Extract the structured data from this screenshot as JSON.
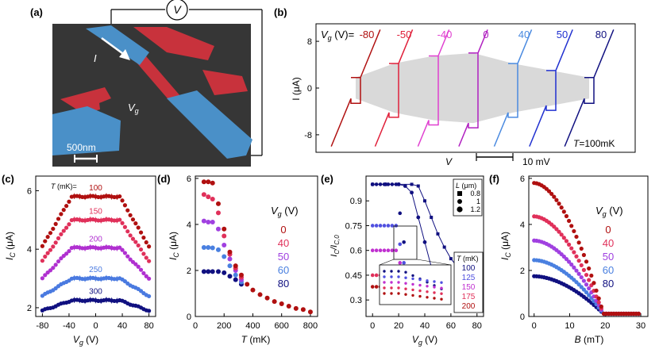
{
  "panel_labels": {
    "a": "(a)",
    "b": "(b)",
    "c": "(c)",
    "d": "(d)",
    "e": "(e)",
    "f": "(f)"
  },
  "panel_a": {
    "meter_label": "V",
    "current_label": "I",
    "gate_label": "V",
    "gate_sub": "g",
    "scale_bar": "500nm",
    "colors": {
      "electrode": "#4a90c8",
      "gate": "#c8323c",
      "wire": "#c8323c",
      "background": "#2a2a2a"
    }
  },
  "chart_data": [
    {
      "id": "b",
      "type": "line",
      "ylabel": "I (μA)",
      "xlabel": "V",
      "scale_bar_label": "10 mV",
      "legend_title": "V_g (V)=",
      "legend_title_main": "V",
      "legend_title_sub": "g",
      "legend_title_tail": " (V)=",
      "temperature_label": "T=100mK",
      "temperature_main": "T",
      "temperature_tail": "=100mK",
      "y_ticks": [
        8,
        0,
        -8
      ],
      "ylim": [
        -11,
        11
      ],
      "shaded_band": true,
      "series": [
        {
          "name": "-80",
          "color": "#b01010",
          "Ic": 1.8
        },
        {
          "name": "-50",
          "color": "#e0203a",
          "Ic": 4.2
        },
        {
          "name": "-40",
          "color": "#e040d0",
          "Ic": 5.5
        },
        {
          "name": "0",
          "color": "#b020c0",
          "Ic": 6.0
        },
        {
          "name": "40",
          "color": "#4a8ae0",
          "Ic": 4.2
        },
        {
          "name": "50",
          "color": "#2030d0",
          "Ic": 3.0
        },
        {
          "name": "80",
          "color": "#101080",
          "Ic": 1.8
        }
      ]
    },
    {
      "id": "c",
      "type": "scatter",
      "xlabel": "V_g (V)",
      "xlabel_main": "V",
      "xlabel_sub": "g",
      "xlabel_tail": " (V)",
      "ylabel_main": "I",
      "ylabel_sub": "C",
      "ylabel_tail": " (μA)",
      "xlim": [
        -90,
        90
      ],
      "ylim": [
        1.7,
        6.5
      ],
      "x_ticks": [
        -80,
        -40,
        0,
        40,
        80
      ],
      "y_ticks": [
        2,
        4,
        6
      ],
      "annotation_prefix": "T (mK)= ",
      "annotation_main": "T",
      "annotation_tail": " (mK)= ",
      "series": [
        {
          "name": "100",
          "color": "#b01010",
          "plateau": 5.8,
          "low": 4.1
        },
        {
          "name": "150",
          "color": "#e0305a",
          "plateau": 5.0,
          "low": 3.6
        },
        {
          "name": "200",
          "color": "#b030d0",
          "plateau": 4.05,
          "low": 3.0
        },
        {
          "name": "250",
          "color": "#4a7ae0",
          "plateau": 3.0,
          "low": 2.4
        },
        {
          "name": "300",
          "color": "#101080",
          "plateau": 2.25,
          "low": 1.9
        }
      ]
    },
    {
      "id": "d",
      "type": "scatter",
      "xlabel_main": "T",
      "xlabel_tail": " (mK)",
      "ylabel_main": "I",
      "ylabel_sub": "C",
      "ylabel_tail": " (μA)",
      "xlim": [
        0,
        850
      ],
      "ylim": [
        0,
        6.1
      ],
      "x_ticks": [
        0,
        200,
        400,
        600,
        800
      ],
      "y_ticks": [
        0,
        2,
        4,
        6
      ],
      "legend_title_main": "V",
      "legend_title_sub": "g",
      "legend_title_tail": " (V)",
      "series": [
        {
          "name": "0",
          "color": "#b01010",
          "points": [
            [
              60,
              5.85
            ],
            [
              90,
              5.85
            ],
            [
              120,
              5.8
            ],
            [
              160,
              4.9
            ],
            [
              200,
              3.8
            ],
            [
              240,
              2.8
            ],
            [
              280,
              2.2
            ],
            [
              320,
              1.8
            ],
            [
              360,
              1.4
            ],
            [
              400,
              1.15
            ],
            [
              450,
              0.95
            ],
            [
              500,
              0.8
            ],
            [
              550,
              0.65
            ],
            [
              600,
              0.55
            ],
            [
              650,
              0.45
            ],
            [
              700,
              0.35
            ],
            [
              750,
              0.3
            ],
            [
              800,
              0.2
            ]
          ]
        },
        {
          "name": "40",
          "color": "#e0305a",
          "points": [
            [
              60,
              5.3
            ],
            [
              90,
              5.2
            ],
            [
              120,
              5.1
            ],
            [
              160,
              4.5
            ],
            [
              200,
              3.5
            ],
            [
              240,
              2.7
            ],
            [
              280,
              2.1
            ],
            [
              320,
              1.7
            ]
          ]
        },
        {
          "name": "50",
          "color": "#a040e0",
          "points": [
            [
              60,
              4.15
            ],
            [
              90,
              4.1
            ],
            [
              120,
              4.1
            ],
            [
              160,
              3.8
            ],
            [
              200,
              3.1
            ],
            [
              240,
              2.5
            ],
            [
              280,
              2.0
            ],
            [
              320,
              1.6
            ]
          ]
        },
        {
          "name": "60",
          "color": "#4a80e0",
          "points": [
            [
              60,
              3.0
            ],
            [
              90,
              3.0
            ],
            [
              120,
              2.98
            ],
            [
              160,
              2.9
            ],
            [
              200,
              2.6
            ],
            [
              240,
              2.2
            ],
            [
              280,
              1.8
            ],
            [
              320,
              1.5
            ]
          ]
        },
        {
          "name": "80",
          "color": "#101080",
          "points": [
            [
              60,
              1.95
            ],
            [
              90,
              1.95
            ],
            [
              120,
              1.95
            ],
            [
              160,
              1.95
            ],
            [
              200,
              1.9
            ],
            [
              240,
              1.75
            ],
            [
              280,
              1.6
            ],
            [
              320,
              1.4
            ]
          ]
        }
      ]
    },
    {
      "id": "e",
      "type": "scatter",
      "xlabel_main": "V",
      "xlabel_sub": "g",
      "xlabel_tail": " (V)",
      "ylabel": "I_C/I_C,0",
      "xlim": [
        -5,
        85
      ],
      "ylim": [
        0.2,
        1.05
      ],
      "x_ticks": [
        0,
        20,
        40,
        60,
        80
      ],
      "y_ticks": [
        0.3,
        0.45,
        0.6,
        0.75,
        0.9
      ],
      "y_tick_labels": [
        "0.3",
        "0.45",
        "0.6",
        "0.75",
        "0.9"
      ],
      "legend_L_title": "L (μm)",
      "legend_L_main": "L",
      "legend_L_tail": " (μm)",
      "legend_L": [
        "0.8",
        "1",
        "1.2"
      ],
      "legend_T_title": "T (mK)",
      "legend_T_main": "T",
      "legend_T_tail": " (mK)",
      "legend_T": [
        {
          "label": "100",
          "color": "#101080"
        },
        {
          "label": "125",
          "color": "#5050e0"
        },
        {
          "label": "150",
          "color": "#c030d0"
        },
        {
          "label": "175",
          "color": "#e0305a"
        },
        {
          "label": "200",
          "color": "#b01010"
        }
      ],
      "series": [
        {
          "name": "100",
          "color": "#101080",
          "flat": 1.0,
          "end": 30
        },
        {
          "name": "125",
          "color": "#5050e0",
          "flat": 0.75,
          "end": 30
        },
        {
          "name": "150",
          "color": "#c030d0",
          "flat": 0.6,
          "end": 30
        },
        {
          "name": "175",
          "color": "#e0305a",
          "flat": 0.45,
          "end": 30
        },
        {
          "name": "200",
          "color": "#b01010",
          "flat": 0.38,
          "end": 30
        }
      ],
      "long_series": [
        {
          "name": "L1.0",
          "color": "#101080",
          "points": [
            [
              0,
              1.0
            ],
            [
              10,
              1.0
            ],
            [
              20,
              1.0
            ],
            [
              25,
              0.99
            ],
            [
              30,
              0.95
            ],
            [
              35,
              0.8
            ],
            [
              40,
              0.65
            ],
            [
              45,
              0.5
            ],
            [
              50,
              0.4
            ]
          ]
        },
        {
          "name": "L1.2",
          "color": "#101080",
          "points": [
            [
              0,
              1.0
            ],
            [
              10,
              1.0
            ],
            [
              20,
              1.0
            ],
            [
              30,
              1.0
            ],
            [
              35,
              0.99
            ],
            [
              40,
              0.9
            ],
            [
              45,
              0.8
            ],
            [
              50,
              0.7
            ],
            [
              55,
              0.62
            ],
            [
              60,
              0.55
            ],
            [
              65,
              0.5
            ],
            [
              70,
              0.45
            ],
            [
              75,
              0.4
            ],
            [
              80,
              0.37
            ]
          ]
        }
      ]
    },
    {
      "id": "f",
      "type": "scatter",
      "xlabel_main": "B",
      "xlabel_tail": " (mT)",
      "ylabel_main": "I",
      "ylabel_sub": "C",
      "ylabel_tail": " (μA)",
      "xlim": [
        -1.5,
        32
      ],
      "ylim": [
        0,
        6.1
      ],
      "x_ticks": [
        0,
        10,
        20,
        30
      ],
      "y_ticks": [
        0,
        2,
        4,
        6
      ],
      "legend_title_main": "V",
      "legend_title_sub": "g",
      "legend_title_tail": " (V)",
      "series": [
        {
          "name": "0",
          "color": "#b01010",
          "I0": 5.8
        },
        {
          "name": "40",
          "color": "#e0305a",
          "I0": 4.35
        },
        {
          "name": "50",
          "color": "#a040e0",
          "I0": 3.3
        },
        {
          "name": "60",
          "color": "#4a80e0",
          "I0": 2.45
        },
        {
          "name": "80",
          "color": "#101080",
          "I0": 1.75
        }
      ]
    }
  ]
}
